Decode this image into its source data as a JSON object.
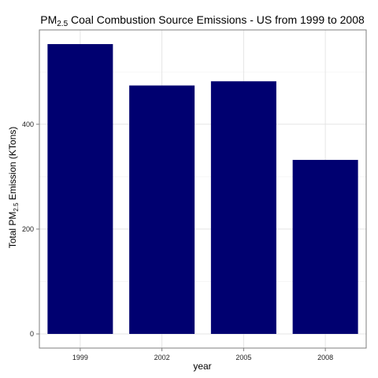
{
  "chart_data": {
    "type": "bar",
    "title": {
      "prefix": "PM",
      "subscript": "2.5",
      "suffix": " Coal Combustion Source Emissions - US from 1999 to 2008"
    },
    "xlabel": "year",
    "ylabel": {
      "prefix": "Total PM",
      "subscript": "2.5",
      "suffix": " Emission (KTons)"
    },
    "categories": [
      "1999",
      "2002",
      "2005",
      "2008"
    ],
    "values": [
      553,
      474,
      482,
      332
    ],
    "y_ticks": [
      0,
      200,
      400
    ],
    "ylim": [
      -27,
      580
    ],
    "bar_color": "#000070",
    "grid": true,
    "background": "#ffffff"
  }
}
